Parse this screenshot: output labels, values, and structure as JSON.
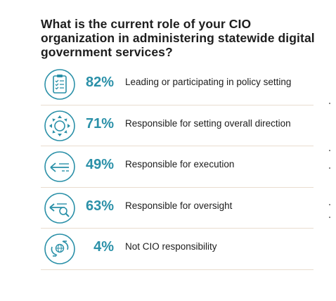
{
  "chart_data": {
    "type": "table",
    "title": "What is the current role of your CIO organization in administering statewide digital government services?",
    "accent_color": "#2a90a8",
    "divider_color": "#e9dccf",
    "items": [
      {
        "icon": "clipboard-checklist-icon",
        "value": 82,
        "value_label": "82%",
        "label": "Leading or participating in policy setting"
      },
      {
        "icon": "compass-direction-icon",
        "value": 71,
        "value_label": "71%",
        "label": "Responsible for setting overall direction"
      },
      {
        "icon": "arrow-execution-icon",
        "value": 49,
        "value_label": "49%",
        "label": "Responsible for execution"
      },
      {
        "icon": "arrow-magnifier-oversight-icon",
        "value": 63,
        "value_label": "63%",
        "label": "Responsible for oversight"
      },
      {
        "icon": "hands-globe-icon",
        "value": 4,
        "value_label": "4%",
        "label": "Not CIO responsibility"
      }
    ]
  }
}
